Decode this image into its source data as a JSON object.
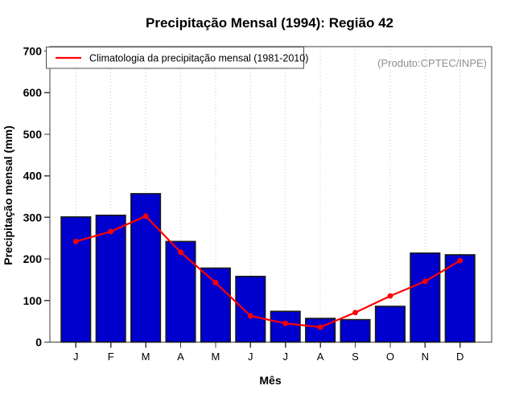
{
  "page": {
    "background": "#FFFFFF"
  },
  "chart_data": {
    "type": "bar",
    "title": "Precipitação Mensal (1994): Região 42",
    "xlabel": "Mês",
    "ylabel": "Precipitação mensal (mm)",
    "categories": [
      "J",
      "F",
      "M",
      "A",
      "M",
      "J",
      "J",
      "A",
      "S",
      "O",
      "N",
      "D"
    ],
    "series": [
      {
        "name": "Precipitação mensal (1994)",
        "type": "bar",
        "color": "#0000CE",
        "values": [
          301,
          305,
          357,
          242,
          178,
          158,
          74,
          57,
          54,
          86,
          214,
          210
        ]
      },
      {
        "name": "Climatologia da precipitação mensal (1981-2010)",
        "type": "line",
        "color": "#FF0000",
        "values": [
          242,
          266,
          303,
          216,
          143,
          63,
          45,
          36,
          71,
          111,
          146,
          196
        ]
      }
    ],
    "ylim": [
      0,
      700
    ],
    "yticks": [
      0,
      100,
      200,
      300,
      400,
      500,
      600,
      700
    ],
    "grid": "vertical-dotted",
    "legend_position": "top-left",
    "annotation": "(Produto:CPTEC/INPE)"
  },
  "colors": {
    "bar_fill": "#0000CE",
    "bar_border": "#1A1A1A",
    "climatology_line": "#FF0000",
    "grid": "#C9C9C9",
    "frame": "#3D3D3D",
    "legend_border": "#4D4D4D",
    "annotation_text": "#8F8F8F",
    "text": "#000000"
  }
}
